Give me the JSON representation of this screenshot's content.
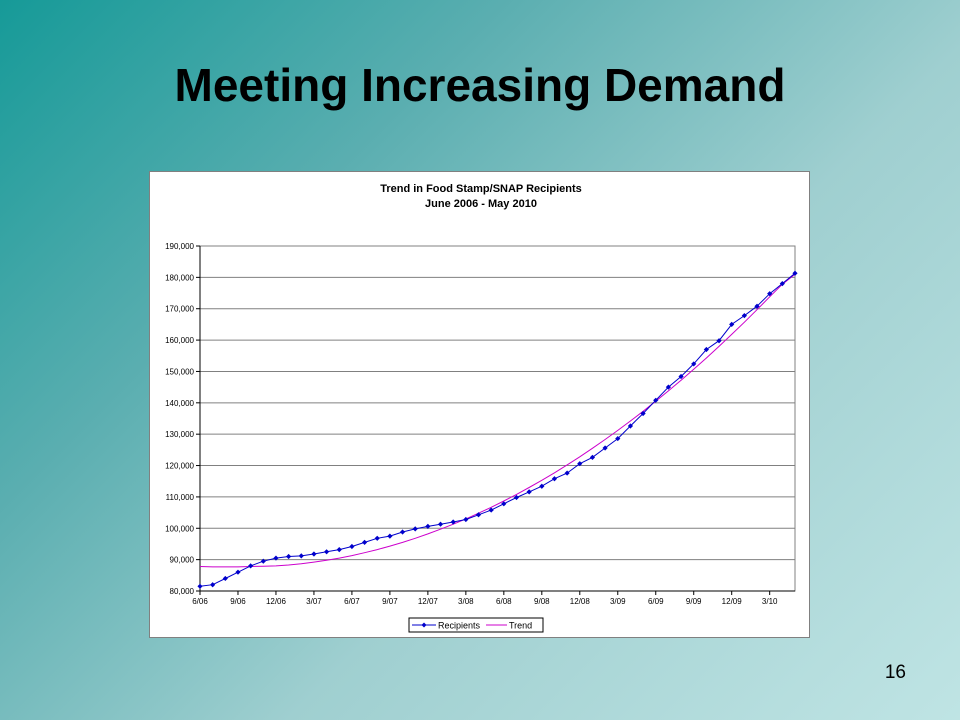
{
  "slide": {
    "title": "Meeting Increasing Demand",
    "page_number": "16"
  },
  "colors": {
    "recipients": "#0000cc",
    "trend": "#cc00cc",
    "grid": "#808080"
  },
  "chart_data": {
    "type": "line",
    "title": "Trend in Food Stamp/SNAP Recipients",
    "subtitle": "June 2006 - May 2010",
    "ylim": [
      80000,
      190000
    ],
    "y_ticks": [
      80000,
      90000,
      100000,
      110000,
      120000,
      130000,
      140000,
      150000,
      160000,
      170000,
      180000,
      190000
    ],
    "y_tick_labels": [
      "80,000",
      "90,000",
      "100,000",
      "110,000",
      "120,000",
      "130,000",
      "140,000",
      "150,000",
      "160,000",
      "170,000",
      "180,000",
      "190,000"
    ],
    "x_tick_labels": [
      "6/06",
      "9/06",
      "12/06",
      "3/07",
      "6/07",
      "9/07",
      "12/07",
      "3/08",
      "6/08",
      "9/08",
      "12/08",
      "3/09",
      "6/09",
      "9/09",
      "12/09",
      "3/10"
    ],
    "categories": [
      "6/06",
      "7/06",
      "8/06",
      "9/06",
      "10/06",
      "11/06",
      "12/06",
      "1/07",
      "2/07",
      "3/07",
      "4/07",
      "5/07",
      "6/07",
      "7/07",
      "8/07",
      "9/07",
      "10/07",
      "11/07",
      "12/07",
      "1/08",
      "2/08",
      "3/08",
      "4/08",
      "5/08",
      "6/08",
      "7/08",
      "8/08",
      "9/08",
      "10/08",
      "11/08",
      "12/08",
      "1/09",
      "2/09",
      "3/09",
      "4/09",
      "5/09",
      "6/09",
      "7/09",
      "8/09",
      "9/09",
      "10/09",
      "11/09",
      "12/09",
      "1/10",
      "2/10",
      "3/10",
      "4/10",
      "5/10"
    ],
    "grid": "horizontal",
    "legend_position": "bottom",
    "series": [
      {
        "name": "Recipients",
        "marker": "diamond",
        "values": [
          81500,
          82000,
          84000,
          86000,
          88000,
          89500,
          90500,
          91000,
          91200,
          91800,
          92500,
          93200,
          94200,
          95500,
          96800,
          97500,
          98800,
          99800,
          100600,
          101300,
          102000,
          102800,
          104300,
          105800,
          107800,
          109800,
          111600,
          113400,
          115800,
          117600,
          120600,
          122600,
          125600,
          128600,
          132600,
          136600,
          140800,
          145000,
          148400,
          152400,
          157000,
          159800,
          165000,
          167800,
          170800,
          174800,
          178000,
          181300
        ]
      },
      {
        "name": "Trend",
        "marker": "none",
        "values": [
          87800,
          87700,
          87700,
          87700,
          87800,
          87900,
          88000,
          88300,
          88700,
          89200,
          89800,
          90500,
          91300,
          92200,
          93200,
          94300,
          95500,
          96800,
          98200,
          99700,
          101300,
          103000,
          104800,
          106700,
          108700,
          110800,
          113000,
          115300,
          117700,
          120200,
          122800,
          125500,
          128300,
          131200,
          134200,
          137300,
          140500,
          143800,
          147200,
          150700,
          154300,
          158000,
          161800,
          165700,
          169700,
          173800,
          177800,
          181000
        ]
      }
    ]
  }
}
